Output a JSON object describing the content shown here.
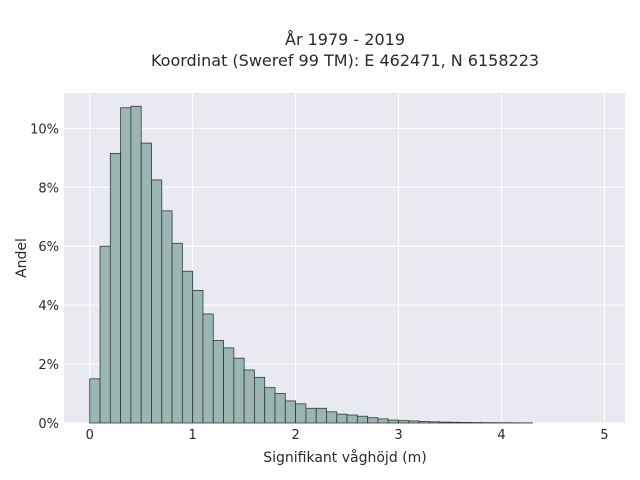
{
  "chart_data": {
    "type": "bar",
    "title_line1": "År 1979 - 2019",
    "title_line2": "Koordinat (Sweref 99 TM): E 462471, N 6158223",
    "xlabel": "Signifikant våghöjd (m)",
    "ylabel": "Andel",
    "xlim": [
      -0.25,
      5.2
    ],
    "ylim": [
      0,
      11.2
    ],
    "x_ticks": [
      0,
      1,
      2,
      3,
      4,
      5
    ],
    "x_tick_labels": [
      "0",
      "1",
      "2",
      "3",
      "4",
      "5"
    ],
    "y_ticks": [
      0,
      2,
      4,
      6,
      8,
      10
    ],
    "y_tick_labels": [
      "0%",
      "2%",
      "4%",
      "6%",
      "8%",
      "10%"
    ],
    "bin_width": 0.1,
    "bin_start": 0,
    "values": [
      1.5,
      6.0,
      9.15,
      10.7,
      10.75,
      9.5,
      8.25,
      7.2,
      6.1,
      5.15,
      4.5,
      3.7,
      2.8,
      2.55,
      2.2,
      1.8,
      1.55,
      1.2,
      1.0,
      0.75,
      0.65,
      0.5,
      0.5,
      0.38,
      0.3,
      0.27,
      0.23,
      0.18,
      0.14,
      0.1,
      0.08,
      0.07,
      0.05,
      0.04,
      0.03,
      0.025,
      0.02,
      0.015,
      0.012,
      0.01,
      0.008,
      0.006,
      0.004
    ],
    "grid": true,
    "colors": {
      "background": "#e9e9f1",
      "bar_fill": "#9bb5b3",
      "bar_edge": "#2f3a39",
      "grid": "#ffffff"
    }
  }
}
